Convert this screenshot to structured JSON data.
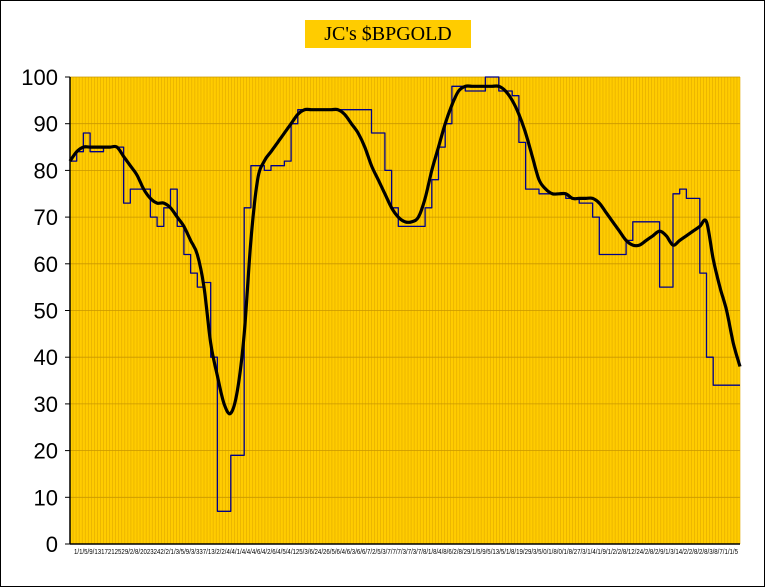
{
  "chart_data": {
    "type": "line",
    "title": "JC's $BPGOLD",
    "ylim": [
      0,
      100
    ],
    "yticks": [
      0,
      10,
      20,
      30,
      40,
      50,
      60,
      70,
      80,
      90,
      100
    ],
    "xtick_text": "1/1/5/9/1317212529/2/8/2023242/2/1/3/5/9/3/337/13/2/2/4/4/1/4/4/4/6/4/2/6/4/5/4/125/3/6/24/26/5/6/4/6/3/6/6/7/2/5/3/7/7/7/3/7/3/7/8/1/8/4/8/6/2/8/29/1/5/9/5/13/5/1/8/19/29/3/5/0/1/8/0/1/8/27/3/1/4/1/9/1/2/2/8/12/24/2/8/2/9/1/3/14/2/2/8/2/8/3/8/7/1/1/5",
    "grid": true,
    "background": "#ffcc00",
    "series": [
      {
        "color": "#00008b",
        "style": "thin",
        "x": [
          0,
          1,
          2,
          3,
          4,
          5,
          6,
          7,
          8,
          9,
          10,
          11,
          12,
          13,
          14,
          15,
          16,
          17,
          18,
          19,
          20,
          21,
          22,
          23,
          24,
          25,
          26,
          27,
          28,
          29,
          30,
          31,
          32,
          33,
          34,
          35,
          36,
          37,
          38,
          39,
          40,
          41,
          42,
          43,
          44,
          45,
          46,
          47,
          48,
          49,
          50,
          51,
          52,
          53,
          54,
          55,
          56,
          57,
          58,
          59,
          60,
          61,
          62,
          63,
          64,
          65,
          66,
          67,
          68,
          69,
          70,
          71,
          72,
          73,
          74,
          75,
          76,
          77,
          78,
          79,
          80,
          81,
          82,
          83,
          84,
          85,
          86,
          87,
          88,
          89,
          90,
          91,
          92,
          93,
          94,
          95,
          96,
          97,
          98,
          99,
          100
        ],
        "values": [
          82,
          84,
          88,
          84,
          84,
          85,
          85,
          85,
          73,
          76,
          76,
          76,
          70,
          68,
          72,
          76,
          68,
          62,
          58,
          55,
          56,
          40,
          7,
          7,
          19,
          19,
          72,
          81,
          81,
          80,
          81,
          81,
          82,
          90,
          93,
          93,
          93,
          93,
          93,
          93,
          93,
          93,
          93,
          93,
          93,
          88,
          88,
          80,
          72,
          68,
          68,
          68,
          68,
          72,
          78,
          85,
          90,
          98,
          98,
          97,
          97,
          97,
          100,
          100,
          97,
          97,
          96,
          86,
          76,
          76,
          75,
          75,
          75,
          75,
          74,
          74,
          73,
          73,
          70,
          62,
          62,
          62,
          62,
          65,
          69,
          69,
          69,
          69,
          55,
          55,
          75,
          76,
          74,
          74,
          58,
          40,
          34,
          34,
          34,
          34,
          34
        ]
      },
      {
        "color": "#000000",
        "style": "thick",
        "x": [
          0,
          1,
          2,
          3,
          4,
          5,
          6,
          7,
          8,
          9,
          10,
          11,
          12,
          13,
          14,
          15,
          16,
          17,
          18,
          19,
          20,
          21,
          22,
          23,
          24,
          25,
          26,
          27,
          28,
          29,
          30,
          31,
          32,
          33,
          34,
          35,
          36,
          37,
          38,
          39,
          40,
          41,
          42,
          43,
          44,
          45,
          46,
          47,
          48,
          49,
          50,
          51,
          52,
          53,
          54,
          55,
          56,
          57,
          58,
          59,
          60,
          61,
          62,
          63,
          64,
          65,
          66,
          67,
          68,
          69,
          70,
          71,
          72,
          73,
          74,
          75,
          76,
          77,
          78,
          79,
          80,
          81,
          82,
          83,
          84,
          85,
          86,
          87,
          88,
          89,
          90,
          91,
          92,
          93,
          94,
          95,
          96,
          97,
          98,
          99,
          100
        ],
        "values": [
          82,
          84,
          85,
          85,
          85,
          85,
          85,
          85,
          83,
          81,
          79,
          76,
          74,
          73,
          73,
          72,
          70,
          68,
          65,
          62,
          55,
          43,
          36,
          30,
          28,
          33,
          45,
          65,
          78,
          82,
          84,
          86,
          88,
          90,
          92,
          93,
          93,
          93,
          93,
          93,
          93,
          92,
          90,
          88,
          85,
          81,
          78,
          75,
          72,
          70,
          69,
          69,
          70,
          74,
          80,
          85,
          90,
          94,
          97,
          98,
          98,
          98,
          98,
          98,
          98,
          97,
          95,
          92,
          88,
          83,
          78,
          76,
          75,
          75,
          75,
          74,
          74,
          74,
          74,
          73,
          71,
          69,
          67,
          65,
          64,
          64,
          65,
          66,
          67,
          66,
          64,
          65,
          66,
          67,
          68,
          69,
          61,
          55,
          50,
          43,
          38
        ]
      }
    ]
  }
}
